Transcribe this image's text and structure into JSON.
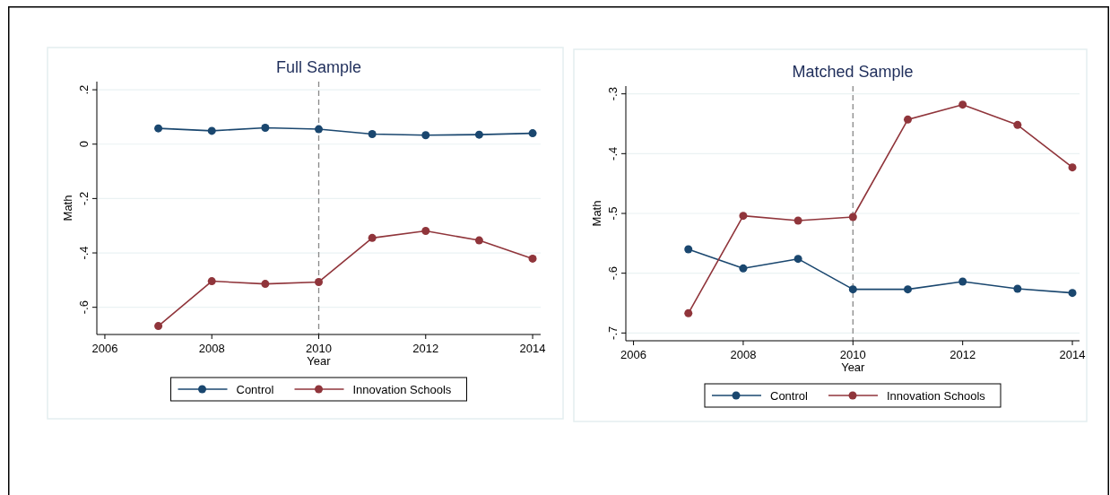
{
  "chart_data": [
    {
      "type": "line",
      "title": "Full Sample",
      "xlabel": "Year",
      "ylabel": "Math",
      "x": [
        2007,
        2008,
        2009,
        2010,
        2011,
        2012,
        2013,
        2014
      ],
      "xlim": [
        2005.85,
        2014.15
      ],
      "xticks": [
        2006,
        2008,
        2010,
        2012,
        2014
      ],
      "ylim": [
        -0.7,
        0.23
      ],
      "yticks": [
        {
          "value": 0.2,
          "label": ".2"
        },
        0,
        {
          "value": -0.2,
          "label": "-.2"
        },
        {
          "value": -0.4,
          "label": "-.4"
        },
        {
          "value": -0.6,
          "label": "-.6"
        }
      ],
      "grid": "y",
      "legend": "bottom",
      "marker": "circle",
      "line_style": "solid",
      "ref_lines": [
        {
          "axis": "x",
          "value": 2010,
          "color": "#888888",
          "line_style": "dashed"
        }
      ],
      "series": [
        {
          "name": "Control",
          "color": "#1a476f",
          "values": [
            0.058,
            0.049,
            0.06,
            0.055,
            0.037,
            0.033,
            0.035,
            0.04
          ]
        },
        {
          "name": "Innovation Schools",
          "color": "#90353b",
          "values": [
            -0.669,
            -0.504,
            -0.514,
            -0.507,
            -0.345,
            -0.319,
            -0.354,
            -0.421
          ]
        }
      ]
    },
    {
      "type": "line",
      "title": "Matched Sample",
      "xlabel": "Year",
      "ylabel": "Math",
      "x": [
        2007,
        2008,
        2009,
        2010,
        2011,
        2012,
        2013,
        2014
      ],
      "xlim": [
        2005.86,
        2014.13
      ],
      "xticks": [
        2006,
        2008,
        2010,
        2012,
        2014
      ],
      "ylim": [
        -0.713,
        -0.287
      ],
      "yticks": [
        {
          "value": -0.3,
          "label": "-.3"
        },
        {
          "value": -0.4,
          "label": "-.4"
        },
        {
          "value": -0.5,
          "label": "-.5"
        },
        {
          "value": -0.6,
          "label": "-.6"
        },
        {
          "value": -0.7,
          "label": "-.7"
        }
      ],
      "grid": "y",
      "legend": "bottom",
      "marker": "circle",
      "line_style": "solid",
      "ref_lines": [
        {
          "axis": "x",
          "value": 2010,
          "color": "#888888",
          "line_style": "dashed"
        }
      ],
      "series": [
        {
          "name": "Control",
          "color": "#1a476f",
          "values": [
            -0.56,
            -0.592,
            -0.576,
            -0.627,
            -0.627,
            -0.614,
            -0.626,
            -0.633
          ]
        },
        {
          "name": "Innovation Schools",
          "color": "#90353b",
          "values": [
            -0.667,
            -0.504,
            -0.512,
            -0.506,
            -0.343,
            -0.318,
            -0.352,
            -0.423
          ]
        }
      ]
    }
  ]
}
